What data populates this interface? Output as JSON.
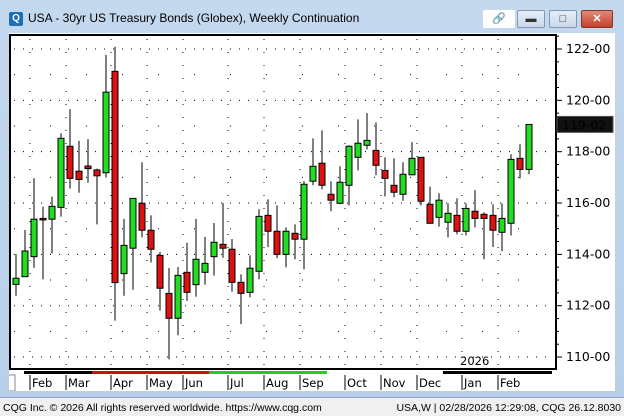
{
  "window": {
    "title": "USA - 30yr US Treasury Bonds (Globex), Weekly Continuation",
    "app_icon": "cqg-q-icon",
    "buttons": {
      "link": "link-chain-icon",
      "minimize": "minimize-icon",
      "maximize": "restore-icon",
      "close": "close-icon"
    }
  },
  "chart_data": {
    "type": "candlestick",
    "interval": "weekly",
    "ylim": [
      110,
      122.5
    ],
    "y_ticks": [
      "110-00",
      "112-00",
      "114-00",
      "116-00",
      "118-00",
      "120-00",
      "122-00"
    ],
    "y_tick_values": [
      110,
      112,
      114,
      116,
      118,
      120,
      122
    ],
    "last_price_label": "119-02",
    "last_price": 119.0625,
    "year_label": "2026",
    "x_tick_labels": [
      "Feb",
      "Mar",
      "Apr",
      "May",
      "Jun",
      "Jul",
      "Aug",
      "Sep",
      "Oct",
      "Nov",
      "Dec",
      "Jan",
      "Feb"
    ],
    "x_tick_bar_index": [
      2,
      6,
      11,
      15,
      19,
      24,
      28,
      32,
      37,
      41,
      45,
      50,
      54
    ],
    "colors": {
      "up": "#22dd22",
      "down": "#dd1111",
      "wick": "#000000",
      "grid": "#000000"
    },
    "grid": "dotted",
    "ohlc_columns": [
      "open",
      "high",
      "low",
      "close"
    ],
    "candles": [
      [
        112.83,
        114.01,
        112.39,
        113.07
      ],
      [
        113.13,
        114.95,
        113.13,
        114.13
      ],
      [
        113.91,
        116.97,
        113.48,
        115.37
      ],
      [
        115.4,
        115.86,
        113.03,
        115.35
      ],
      [
        115.37,
        116.25,
        114.04,
        115.87
      ],
      [
        115.83,
        118.72,
        115.47,
        118.52
      ],
      [
        118.21,
        119.66,
        116.56,
        116.96
      ],
      [
        117.24,
        118.42,
        116.4,
        116.92
      ],
      [
        117.44,
        118.49,
        116.79,
        117.34
      ],
      [
        117.29,
        117.34,
        115.17,
        117.06
      ],
      [
        117.18,
        121.77,
        116.99,
        120.32
      ],
      [
        121.13,
        122.09,
        111.42,
        112.9
      ],
      [
        113.25,
        115.38,
        112.39,
        114.35
      ],
      [
        114.24,
        116.18,
        112.62,
        116.18
      ],
      [
        115.99,
        117.59,
        114.66,
        114.94
      ],
      [
        114.94,
        115.52,
        113.69,
        114.2
      ],
      [
        113.96,
        114.09,
        111.81,
        112.68
      ],
      [
        112.48,
        113.47,
        109.91,
        111.51
      ],
      [
        111.51,
        113.51,
        110.85,
        113.18
      ],
      [
        113.3,
        114.45,
        112.19,
        112.52
      ],
      [
        112.82,
        115.38,
        112.35,
        113.81
      ],
      [
        113.3,
        114.68,
        112.82,
        113.65
      ],
      [
        113.91,
        115.22,
        113.17,
        114.47
      ],
      [
        114.39,
        116.0,
        113.87,
        114.24
      ],
      [
        114.2,
        114.6,
        112.55,
        112.91
      ],
      [
        112.91,
        113.22,
        111.28,
        112.48
      ],
      [
        112.52,
        113.96,
        112.33,
        113.46
      ],
      [
        113.34,
        115.76,
        113.03,
        115.48
      ],
      [
        115.52,
        116.14,
        114.28,
        114.9
      ],
      [
        114.9,
        115.91,
        113.85,
        114.0
      ],
      [
        114.0,
        115.05,
        113.5,
        114.9
      ],
      [
        114.82,
        115.17,
        113.81,
        114.59
      ],
      [
        114.59,
        116.85,
        113.42,
        116.73
      ],
      [
        116.85,
        118.52,
        116.69,
        117.43
      ],
      [
        117.55,
        118.83,
        116.53,
        116.69
      ],
      [
        116.34,
        116.85,
        115.68,
        116.11
      ],
      [
        115.99,
        117.43,
        115.95,
        116.81
      ],
      [
        116.69,
        118.25,
        115.91,
        118.21
      ],
      [
        117.78,
        119.26,
        117.27,
        118.33
      ],
      [
        118.25,
        119.5,
        118.09,
        118.44
      ],
      [
        118.05,
        119.14,
        117.08,
        117.47
      ],
      [
        117.27,
        117.78,
        116.26,
        116.96
      ],
      [
        116.69,
        117.74,
        116.22,
        116.42
      ],
      [
        116.34,
        117.59,
        116.09,
        117.12
      ],
      [
        117.1,
        118.37,
        117.08,
        117.74
      ],
      [
        117.78,
        117.78,
        115.91,
        116.07
      ],
      [
        115.95,
        116.64,
        115.21,
        115.21
      ],
      [
        115.44,
        116.38,
        115.08,
        116.11
      ],
      [
        115.25,
        115.99,
        114.66,
        115.6
      ],
      [
        115.52,
        116.18,
        114.78,
        114.9
      ],
      [
        114.9,
        115.99,
        114.74,
        115.79
      ],
      [
        115.68,
        116.5,
        115.05,
        115.4
      ],
      [
        115.56,
        115.64,
        113.81,
        115.4
      ],
      [
        115.52,
        115.95,
        114.28,
        114.94
      ],
      [
        114.86,
        115.99,
        114.12,
        115.4
      ],
      [
        115.21,
        117.9,
        114.74,
        117.7
      ],
      [
        117.74,
        118.29,
        116.96,
        117.31
      ],
      [
        117.31,
        119.06,
        117.12,
        119.06
      ]
    ],
    "session_bar": [
      "#000000",
      "#cc1111",
      "#22cc22",
      "#ffffff",
      "#000000"
    ]
  },
  "footer": {
    "copyright": "CQG Inc. © 2026 All rights reserved worldwide. https://www.cqg.com",
    "status": "USA,W | 02/28/2026 12:29:08, CQG 26.12.8030"
  }
}
